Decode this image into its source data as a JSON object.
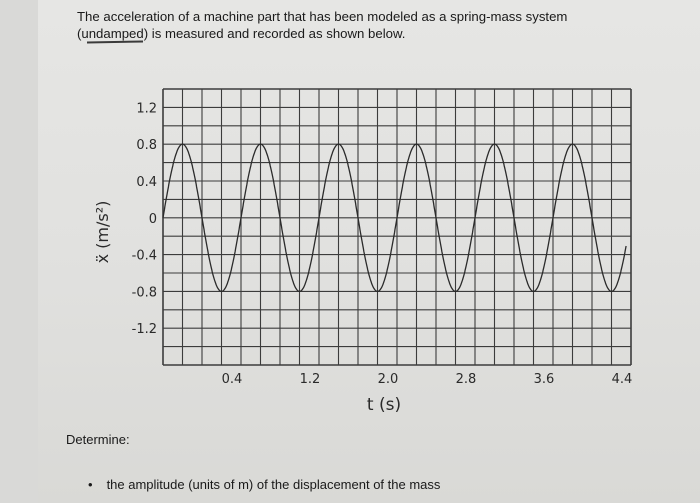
{
  "problem": {
    "line1": "The acceleration of a machine part that has been modeled as a spring-mass system",
    "line2": "(undamped) is measured and recorded as shown below."
  },
  "chart_data": {
    "type": "line",
    "xlabel": "t (s)",
    "ylabel": "ẍ (m/s²)",
    "x_ticks": [
      "0.4",
      "1.2",
      "2.0",
      "2.8",
      "3.6",
      "4.4"
    ],
    "y_ticks": [
      "1.2",
      "0.8",
      "0.4",
      "0",
      "-0.4",
      "-0.8",
      "-1.2"
    ],
    "xlim": [
      0,
      4.8
    ],
    "ylim": [
      -1.6,
      1.4
    ],
    "grid": true,
    "series": [
      {
        "x": [
          0.0,
          0.2,
          0.4,
          0.6,
          0.8,
          1.0,
          1.2,
          1.4,
          1.6,
          1.8,
          2.0,
          2.2,
          2.4,
          2.6,
          2.8,
          3.0,
          3.2,
          3.4,
          3.6,
          3.8,
          4.0,
          4.2,
          4.4,
          4.6
        ],
        "values": [
          0.0,
          0.8,
          0.0,
          -0.8,
          0.0,
          0.8,
          0.0,
          -0.8,
          0.0,
          0.8,
          0.0,
          -0.8,
          0.0,
          0.8,
          0.0,
          -0.8,
          0.0,
          0.8,
          0.0,
          -0.8,
          0.0,
          0.8,
          0.0,
          -0.8
        ]
      }
    ]
  },
  "determine_label": "Determine:",
  "bullets": [
    "the amplitude (units of m) of the displacement of the mass"
  ]
}
